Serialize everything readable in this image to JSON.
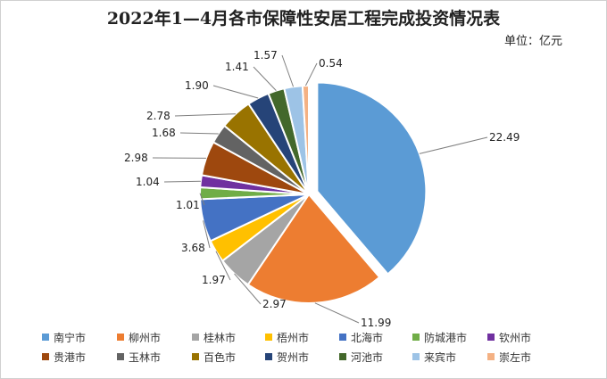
{
  "chart_data": {
    "type": "pie",
    "title": "2022年1—4月各市保障性安居工程完成投资情况表",
    "unit": "单位：亿元",
    "legend_position": "bottom",
    "categories": [
      "南宁市",
      "柳州市",
      "桂林市",
      "梧州市",
      "北海市",
      "防城港市",
      "钦州市",
      "贵港市",
      "玉林市",
      "百色市",
      "贺州市",
      "河池市",
      "来宾市",
      "崇左市"
    ],
    "values": [
      22.49,
      11.99,
      2.97,
      1.97,
      3.68,
      1.01,
      1.04,
      2.98,
      1.68,
      2.78,
      1.9,
      1.41,
      1.57,
      0.54
    ],
    "value_labels": [
      "22.49",
      "11.99",
      "2.97",
      "1.97",
      "3.68",
      "1.01",
      "1.04",
      "2.98",
      "1.68",
      "2.78",
      "1.90",
      "1.41",
      "1.57",
      "0.54"
    ],
    "colors": [
      "#5B9BD5",
      "#ED7D31",
      "#A5A5A5",
      "#FFC000",
      "#4472C4",
      "#70AD47",
      "#7030A0",
      "#9E480E",
      "#636363",
      "#997300",
      "#264478",
      "#43682B",
      "#9DC3E6",
      "#F4B183"
    ],
    "exploded_slice": "南宁市"
  }
}
